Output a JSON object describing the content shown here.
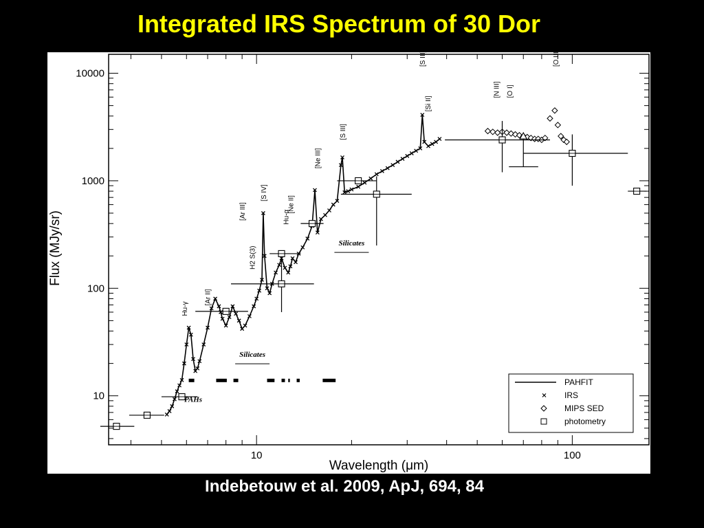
{
  "slide": {
    "title": "Integrated IRS Spectrum of 30 Dor",
    "citation": "Indebetouw et al. 2009, ApJ, 694, 84"
  },
  "chart_data": {
    "type": "line",
    "xlabel": "Wavelength (μm)",
    "ylabel": "Flux (MJy/sr)",
    "xscale": "log",
    "yscale": "log",
    "xlim": [
      3.4,
      175
    ],
    "ylim": [
      3.5,
      15000
    ],
    "x_ticks": [
      {
        "value": 10,
        "label": "10"
      },
      {
        "value": 100,
        "label": "100"
      }
    ],
    "y_ticks": [
      {
        "value": 10,
        "label": "10"
      },
      {
        "value": 100,
        "label": "100"
      },
      {
        "value": 1000,
        "label": "1000"
      },
      {
        "value": 10000,
        "label": "10000"
      }
    ],
    "legend": {
      "position": "bottom-right",
      "entries": [
        {
          "label": "PAHFIT",
          "marker": "line"
        },
        {
          "label": "IRS",
          "marker": "x"
        },
        {
          "label": "MIPS SED",
          "marker": "diamond"
        },
        {
          "label": "photometry",
          "marker": "square"
        }
      ]
    },
    "series": [
      {
        "name": "IRS",
        "marker": "x",
        "x": [
          5.2,
          5.3,
          5.4,
          5.5,
          5.6,
          5.7,
          5.8,
          5.9,
          6.0,
          6.1,
          6.2,
          6.3,
          6.4,
          6.5,
          6.6,
          6.8,
          7.0,
          7.2,
          7.4,
          7.6,
          7.7,
          7.8,
          8.0,
          8.2,
          8.4,
          8.6,
          8.8,
          9.0,
          9.2,
          9.5,
          9.8,
          10.0,
          10.2,
          10.4,
          10.5,
          10.6,
          10.8,
          11.0,
          11.2,
          11.5,
          11.8,
          12.0,
          12.3,
          12.6,
          12.8,
          13.0,
          13.3,
          13.6,
          14.0,
          14.5,
          15.0,
          15.3,
          15.6,
          16.0,
          16.5,
          17.0,
          17.5,
          18.0,
          18.5,
          18.7,
          19.0,
          19.5,
          20,
          21,
          22,
          23,
          24,
          25,
          26,
          27,
          28,
          29,
          30,
          31,
          32,
          33,
          33.5,
          34,
          35,
          36,
          37,
          38
        ],
        "y": [
          6.7,
          7.2,
          8.0,
          9.3,
          11,
          12.5,
          14,
          20,
          30,
          43,
          37,
          22,
          17,
          18,
          21,
          30,
          43,
          65,
          80,
          68,
          60,
          52,
          45,
          54,
          68,
          58,
          50,
          42,
          45,
          55,
          68,
          80,
          95,
          120,
          500,
          200,
          100,
          90,
          110,
          140,
          165,
          190,
          155,
          140,
          160,
          190,
          175,
          210,
          240,
          290,
          380,
          820,
          330,
          440,
          480,
          530,
          600,
          650,
          1400,
          1650,
          780,
          800,
          830,
          880,
          960,
          1050,
          1150,
          1230,
          1310,
          1400,
          1500,
          1600,
          1700,
          1800,
          1900,
          2000,
          4100,
          2300,
          2100,
          2200,
          2300,
          2450
        ]
      },
      {
        "name": "MIPS SED",
        "marker": "diamond",
        "x": [
          54,
          56,
          58,
          60,
          62,
          64,
          66,
          68,
          70,
          72,
          74,
          76,
          78,
          80,
          82,
          85,
          88,
          90,
          92,
          94,
          96
        ],
        "y": [
          2900,
          2850,
          2800,
          2850,
          2800,
          2750,
          2700,
          2650,
          2600,
          2550,
          2500,
          2450,
          2450,
          2400,
          2500,
          3800,
          4500,
          3300,
          2600,
          2400,
          2300
        ]
      },
      {
        "name": "photometry",
        "marker": "square",
        "points": [
          {
            "x": 3.6,
            "y": 5.2,
            "xerr": [
              3.2,
              4.1
            ]
          },
          {
            "x": 4.5,
            "y": 6.6,
            "xerr": [
              3.95,
              5.1
            ]
          },
          {
            "x": 5.8,
            "y": 9.8,
            "xerr": [
              5.0,
              6.5
            ]
          },
          {
            "x": 8.0,
            "y": 61,
            "xerr": [
              6.4,
              9.4
            ]
          },
          {
            "x": 12.0,
            "y": 110,
            "xerr": [
              8.3,
              15.2
            ],
            "yerr": [
              60,
              200
            ]
          },
          {
            "x": 12.0,
            "y": 210,
            "xerr": [
              11,
              13.8
            ]
          },
          {
            "x": 15.0,
            "y": 400,
            "xerr": [
              13.8,
              16.3
            ]
          },
          {
            "x": 21.0,
            "y": 1000,
            "xerr": [
              18,
              24
            ]
          },
          {
            "x": 24.0,
            "y": 750,
            "xerr": [
              18.5,
              31
            ],
            "yerr": [
              250,
              1100
            ]
          },
          {
            "x": 60.0,
            "y": 2400,
            "xerr": [
              39.5,
              85
            ],
            "yerr": [
              1200,
              3600
            ]
          },
          {
            "x": 100.0,
            "y": 1800,
            "xerr": [
              70,
              150
            ],
            "yerr": [
              900,
              2700
            ]
          },
          {
            "x": 160.0,
            "y": 800,
            "xerr": [
              150,
              172
            ]
          }
        ]
      }
    ],
    "annotations": {
      "emission_lines": [
        {
          "label": "Hu-γ",
          "x": 5.9
        },
        {
          "label": "[Ar II]",
          "x": 6.99
        },
        {
          "label": "[Ar III]",
          "x": 8.99
        },
        {
          "label": "H2 S(3)",
          "x": 9.66
        },
        {
          "label": "[S IV]",
          "x": 10.51
        },
        {
          "label": "Hu-α",
          "x": 12.37
        },
        {
          "label": "[Ne II]",
          "x": 12.81
        },
        {
          "label": "[Ne III]",
          "x": 15.56
        },
        {
          "label": "[S III]",
          "x": 18.71
        },
        {
          "label": "[S III]",
          "x": 33.48
        },
        {
          "label": "[Si II]",
          "x": 34.82
        },
        {
          "label": "[N III]",
          "x": 57.3
        },
        {
          "label": "[O I]",
          "x": 63.2
        },
        {
          "label": "[O III]",
          "x": 88.4
        }
      ],
      "bands": [
        {
          "label": "PAHs",
          "x": 6.3,
          "y": 8.8
        },
        {
          "label": "Silicates",
          "x": 9.7,
          "y": 23
        },
        {
          "label": "Silicates",
          "x": 20.0,
          "y": 250
        }
      ]
    }
  }
}
